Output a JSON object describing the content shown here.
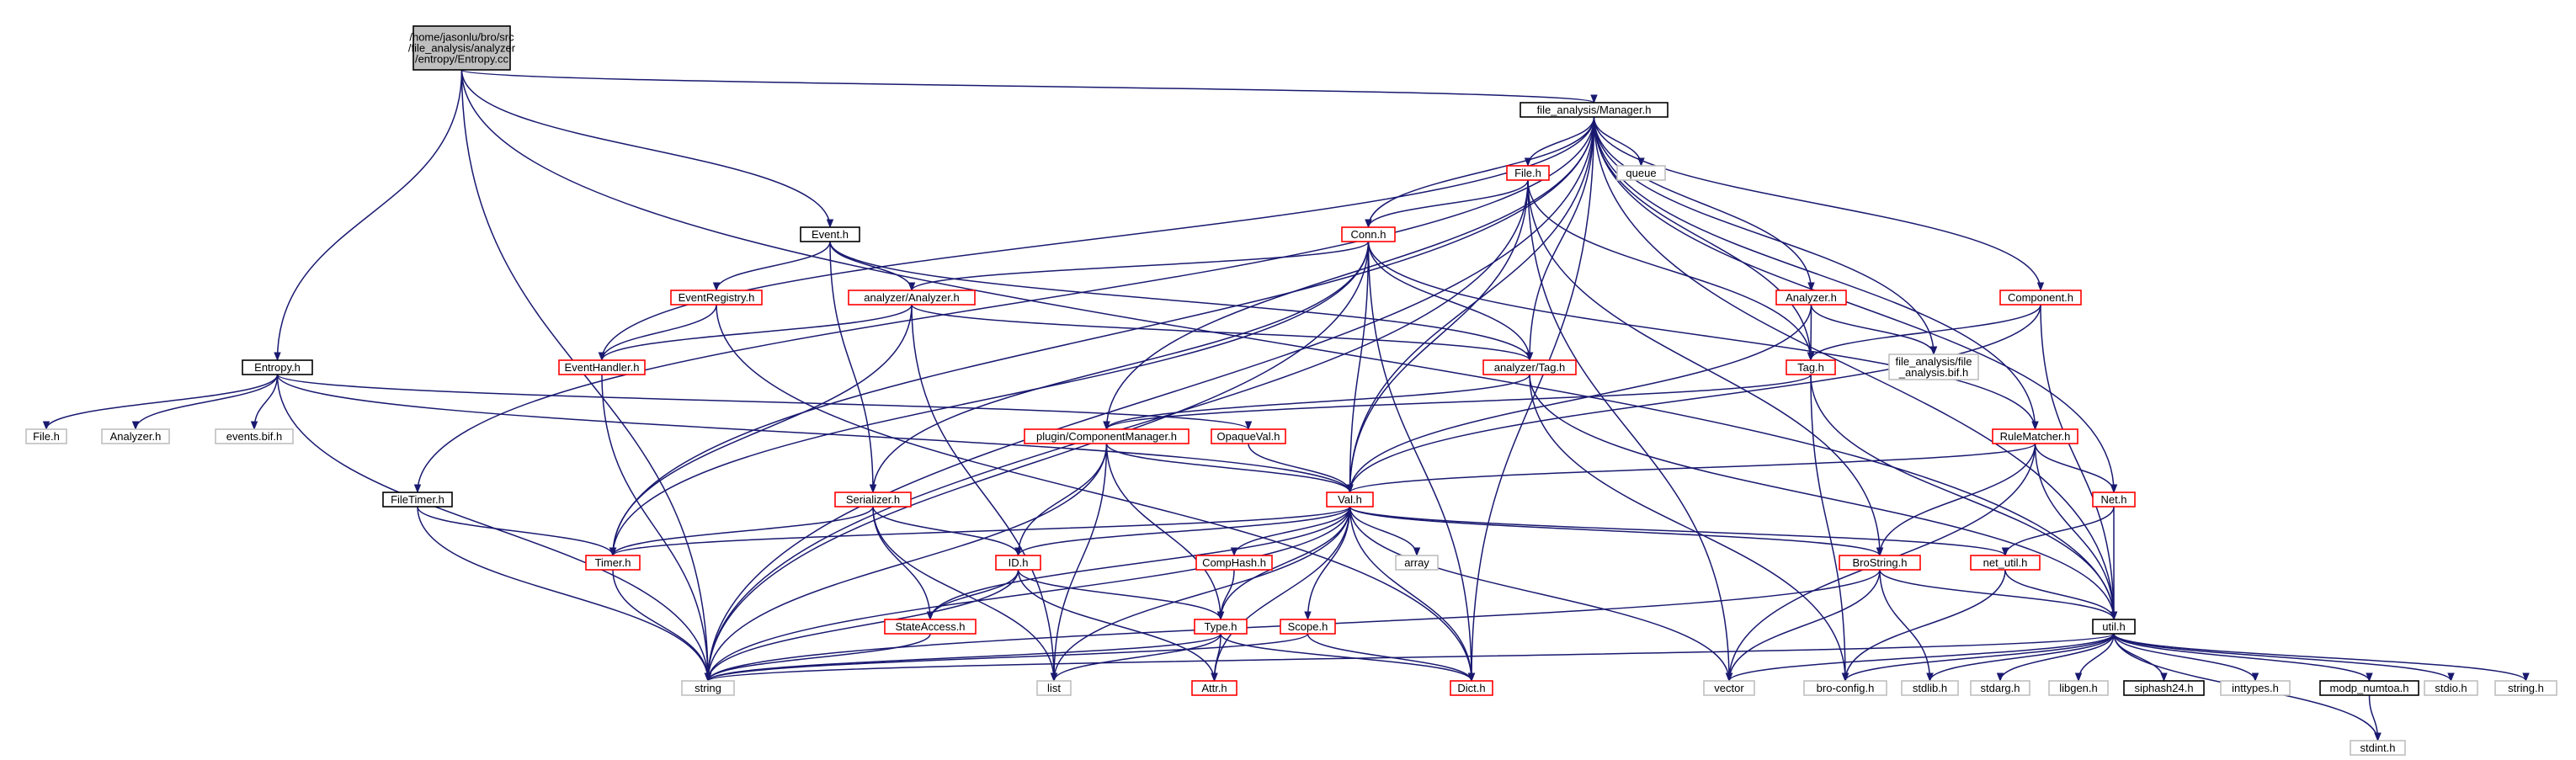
{
  "diagram": {
    "title": "",
    "colors": {
      "edge": "#191970",
      "root_fill": "#bfbfbf",
      "root_border": "#000000",
      "black_border": "#000000",
      "red_border": "#ff0000",
      "grey_border": "#bfbfbf",
      "text": "#000000"
    },
    "nodes": [
      {
        "id": "entropy_cc",
        "label": "/home/jasonlu/bro/src\n/file_analysis/analyzer\n/entropy/Entropy.cc",
        "style": "root"
      },
      {
        "id": "manager_h",
        "label": "file_analysis/Manager.h",
        "style": "black"
      },
      {
        "id": "event_h",
        "label": "Event.h",
        "style": "black"
      },
      {
        "id": "entropy_h",
        "label": "Entropy.h",
        "style": "black"
      },
      {
        "id": "file_h_grey",
        "label": "File.h",
        "style": "grey"
      },
      {
        "id": "analyzer_h_grey",
        "label": "Analyzer.h",
        "style": "grey"
      },
      {
        "id": "events_bif_h",
        "label": "events.bif.h",
        "style": "grey"
      },
      {
        "id": "filetimer_h",
        "label": "FileTimer.h",
        "style": "black"
      },
      {
        "id": "file_h",
        "label": "File.h",
        "style": "red"
      },
      {
        "id": "queue",
        "label": "queue",
        "style": "grey"
      },
      {
        "id": "conn_h",
        "label": "Conn.h",
        "style": "red"
      },
      {
        "id": "eventregistry_h",
        "label": "EventRegistry.h",
        "style": "red"
      },
      {
        "id": "an_analyzer_h",
        "label": "analyzer/Analyzer.h",
        "style": "red"
      },
      {
        "id": "eventhandler_h",
        "label": "EventHandler.h",
        "style": "red"
      },
      {
        "id": "an_tag_h",
        "label": "analyzer/Tag.h",
        "style": "red"
      },
      {
        "id": "fa_analyzer_h",
        "label": "Analyzer.h",
        "style": "red"
      },
      {
        "id": "tag_h",
        "label": "Tag.h",
        "style": "red"
      },
      {
        "id": "fa_bif_h",
        "label": "file_analysis/file\n_analysis.bif.h",
        "style": "grey"
      },
      {
        "id": "component_h",
        "label": "Component.h",
        "style": "red"
      },
      {
        "id": "plugin_cm_h",
        "label": "plugin/ComponentManager.h",
        "style": "red"
      },
      {
        "id": "opaqueval_h",
        "label": "OpaqueVal.h",
        "style": "red"
      },
      {
        "id": "rulematcher_h",
        "label": "RuleMatcher.h",
        "style": "red"
      },
      {
        "id": "val_h",
        "label": "Val.h",
        "style": "red"
      },
      {
        "id": "serializer_h",
        "label": "Serializer.h",
        "style": "red"
      },
      {
        "id": "net_h",
        "label": "Net.h",
        "style": "red"
      },
      {
        "id": "timer_h",
        "label": "Timer.h",
        "style": "red"
      },
      {
        "id": "comphash_h",
        "label": "CompHash.h",
        "style": "red"
      },
      {
        "id": "array",
        "label": "array",
        "style": "grey"
      },
      {
        "id": "id_h",
        "label": "ID.h",
        "style": "red"
      },
      {
        "id": "brostring_h",
        "label": "BroString.h",
        "style": "red"
      },
      {
        "id": "net_util_h",
        "label": "net_util.h",
        "style": "red"
      },
      {
        "id": "stateaccess_h",
        "label": "StateAccess.h",
        "style": "red"
      },
      {
        "id": "type_h",
        "label": "Type.h",
        "style": "red"
      },
      {
        "id": "scope_h",
        "label": "Scope.h",
        "style": "red"
      },
      {
        "id": "util_h",
        "label": "util.h",
        "style": "black"
      },
      {
        "id": "string",
        "label": "string",
        "style": "grey"
      },
      {
        "id": "list",
        "label": "list",
        "style": "grey"
      },
      {
        "id": "attr_h",
        "label": "Attr.h",
        "style": "red"
      },
      {
        "id": "dict_h",
        "label": "Dict.h",
        "style": "red"
      },
      {
        "id": "vector",
        "label": "vector",
        "style": "grey"
      },
      {
        "id": "bro_config_h",
        "label": "bro-config.h",
        "style": "grey"
      },
      {
        "id": "stdlib_h",
        "label": "stdlib.h",
        "style": "grey"
      },
      {
        "id": "stdarg_h",
        "label": "stdarg.h",
        "style": "grey"
      },
      {
        "id": "libgen_h",
        "label": "libgen.h",
        "style": "grey"
      },
      {
        "id": "siphash24_h",
        "label": "siphash24.h",
        "style": "black"
      },
      {
        "id": "inttypes_h",
        "label": "inttypes.h",
        "style": "grey"
      },
      {
        "id": "modp_numtoa_h",
        "label": "modp_numtoa.h",
        "style": "black"
      },
      {
        "id": "stdio_h",
        "label": "stdio.h",
        "style": "grey"
      },
      {
        "id": "string_h",
        "label": "string.h",
        "style": "grey"
      },
      {
        "id": "stdint_h",
        "label": "stdint.h",
        "style": "grey"
      }
    ],
    "edges": [
      [
        "entropy_cc",
        "manager_h"
      ],
      [
        "entropy_cc",
        "event_h"
      ],
      [
        "entropy_cc",
        "entropy_h"
      ],
      [
        "entropy_cc",
        "string"
      ],
      [
        "entropy_cc",
        "util_h"
      ],
      [
        "entropy_h",
        "file_h_grey"
      ],
      [
        "entropy_h",
        "analyzer_h_grey"
      ],
      [
        "entropy_h",
        "events_bif_h"
      ],
      [
        "entropy_h",
        "val_h"
      ],
      [
        "entropy_h",
        "opaqueval_h"
      ],
      [
        "entropy_h",
        "string"
      ],
      [
        "manager_h",
        "file_h"
      ],
      [
        "manager_h",
        "queue"
      ],
      [
        "manager_h",
        "conn_h"
      ],
      [
        "manager_h",
        "val_h"
      ],
      [
        "manager_h",
        "dict_h"
      ],
      [
        "manager_h",
        "tag_h"
      ],
      [
        "manager_h",
        "fa_analyzer_h"
      ],
      [
        "manager_h",
        "fa_bif_h"
      ],
      [
        "manager_h",
        "component_h"
      ],
      [
        "manager_h",
        "rulematcher_h"
      ],
      [
        "manager_h",
        "net_h"
      ],
      [
        "manager_h",
        "util_h"
      ],
      [
        "manager_h",
        "filetimer_h"
      ],
      [
        "manager_h",
        "eventhandler_h"
      ],
      [
        "manager_h",
        "timer_h"
      ],
      [
        "manager_h",
        "string"
      ],
      [
        "manager_h",
        "plugin_cm_h"
      ],
      [
        "manager_h",
        "an_tag_h"
      ],
      [
        "event_h",
        "eventregistry_h"
      ],
      [
        "event_h",
        "an_analyzer_h"
      ],
      [
        "event_h",
        "serializer_h"
      ],
      [
        "event_h",
        "an_tag_h"
      ],
      [
        "eventregistry_h",
        "eventhandler_h"
      ],
      [
        "eventregistry_h",
        "dict_h"
      ],
      [
        "an_analyzer_h",
        "eventhandler_h"
      ],
      [
        "an_analyzer_h",
        "an_tag_h"
      ],
      [
        "an_analyzer_h",
        "timer_h"
      ],
      [
        "an_analyzer_h",
        "list"
      ],
      [
        "eventhandler_h",
        "string"
      ],
      [
        "file_h",
        "conn_h"
      ],
      [
        "file_h",
        "string"
      ],
      [
        "file_h",
        "val_h"
      ],
      [
        "file_h",
        "tag_h"
      ],
      [
        "file_h",
        "vector"
      ],
      [
        "file_h",
        "brostring_h"
      ],
      [
        "conn_h",
        "an_analyzer_h"
      ],
      [
        "conn_h",
        "an_tag_h"
      ],
      [
        "conn_h",
        "val_h"
      ],
      [
        "conn_h",
        "dict_h"
      ],
      [
        "conn_h",
        "timer_h"
      ],
      [
        "conn_h",
        "serializer_h"
      ],
      [
        "conn_h",
        "rulematcher_h"
      ],
      [
        "conn_h",
        "string"
      ],
      [
        "an_tag_h",
        "plugin_cm_h"
      ],
      [
        "an_tag_h",
        "util_h"
      ],
      [
        "an_tag_h",
        "bro_config_h"
      ],
      [
        "fa_analyzer_h",
        "tag_h"
      ],
      [
        "fa_analyzer_h",
        "val_h"
      ],
      [
        "fa_analyzer_h",
        "fa_bif_h"
      ],
      [
        "tag_h",
        "plugin_cm_h"
      ],
      [
        "tag_h",
        "util_h"
      ],
      [
        "tag_h",
        "bro_config_h"
      ],
      [
        "component_h",
        "tag_h"
      ],
      [
        "component_h",
        "val_h"
      ],
      [
        "component_h",
        "util_h"
      ],
      [
        "plugin_cm_h",
        "val_h"
      ],
      [
        "plugin_cm_h",
        "id_h"
      ],
      [
        "plugin_cm_h",
        "type_h"
      ],
      [
        "plugin_cm_h",
        "list"
      ],
      [
        "plugin_cm_h",
        "string"
      ],
      [
        "opaqueval_h",
        "val_h"
      ],
      [
        "rulematcher_h",
        "val_h"
      ],
      [
        "rulematcher_h",
        "brostring_h"
      ],
      [
        "rulematcher_h",
        "net_h"
      ],
      [
        "rulematcher_h",
        "util_h"
      ],
      [
        "rulematcher_h",
        "vector"
      ],
      [
        "val_h",
        "timer_h"
      ],
      [
        "val_h",
        "id_h"
      ],
      [
        "val_h",
        "comphash_h"
      ],
      [
        "val_h",
        "array"
      ],
      [
        "val_h",
        "type_h"
      ],
      [
        "val_h",
        "scope_h"
      ],
      [
        "val_h",
        "attr_h"
      ],
      [
        "val_h",
        "dict_h"
      ],
      [
        "val_h",
        "brostring_h"
      ],
      [
        "val_h",
        "net_util_h"
      ],
      [
        "val_h",
        "vector"
      ],
      [
        "val_h",
        "list"
      ],
      [
        "val_h",
        "string"
      ],
      [
        "val_h",
        "stateaccess_h"
      ],
      [
        "serializer_h",
        "timer_h"
      ],
      [
        "serializer_h",
        "id_h"
      ],
      [
        "serializer_h",
        "stateaccess_h"
      ],
      [
        "serializer_h",
        "list"
      ],
      [
        "filetimer_h",
        "timer_h"
      ],
      [
        "filetimer_h",
        "string"
      ],
      [
        "timer_h",
        "string"
      ],
      [
        "net_h",
        "net_util_h"
      ],
      [
        "net_h",
        "util_h"
      ],
      [
        "id_h",
        "type_h"
      ],
      [
        "id_h",
        "attr_h"
      ],
      [
        "id_h",
        "stateaccess_h"
      ],
      [
        "id_h",
        "string"
      ],
      [
        "comphash_h",
        "type_h"
      ],
      [
        "stateaccess_h",
        "string"
      ],
      [
        "type_h",
        "attr_h"
      ],
      [
        "type_h",
        "dict_h"
      ],
      [
        "type_h",
        "list"
      ],
      [
        "type_h",
        "string"
      ],
      [
        "scope_h",
        "dict_h"
      ],
      [
        "scope_h",
        "string"
      ],
      [
        "brostring_h",
        "util_h"
      ],
      [
        "brostring_h",
        "stdlib_h"
      ],
      [
        "brostring_h",
        "vector"
      ],
      [
        "brostring_h",
        "string"
      ],
      [
        "net_util_h",
        "util_h"
      ],
      [
        "net_util_h",
        "bro_config_h"
      ],
      [
        "util_h",
        "string"
      ],
      [
        "util_h",
        "vector"
      ],
      [
        "util_h",
        "bro_config_h"
      ],
      [
        "util_h",
        "stdlib_h"
      ],
      [
        "util_h",
        "stdarg_h"
      ],
      [
        "util_h",
        "libgen_h"
      ],
      [
        "util_h",
        "siphash24_h"
      ],
      [
        "util_h",
        "inttypes_h"
      ],
      [
        "util_h",
        "modp_numtoa_h"
      ],
      [
        "util_h",
        "stdio_h"
      ],
      [
        "util_h",
        "string_h"
      ],
      [
        "util_h",
        "stdint_h"
      ],
      [
        "modp_numtoa_h",
        "stdint_h"
      ]
    ]
  }
}
